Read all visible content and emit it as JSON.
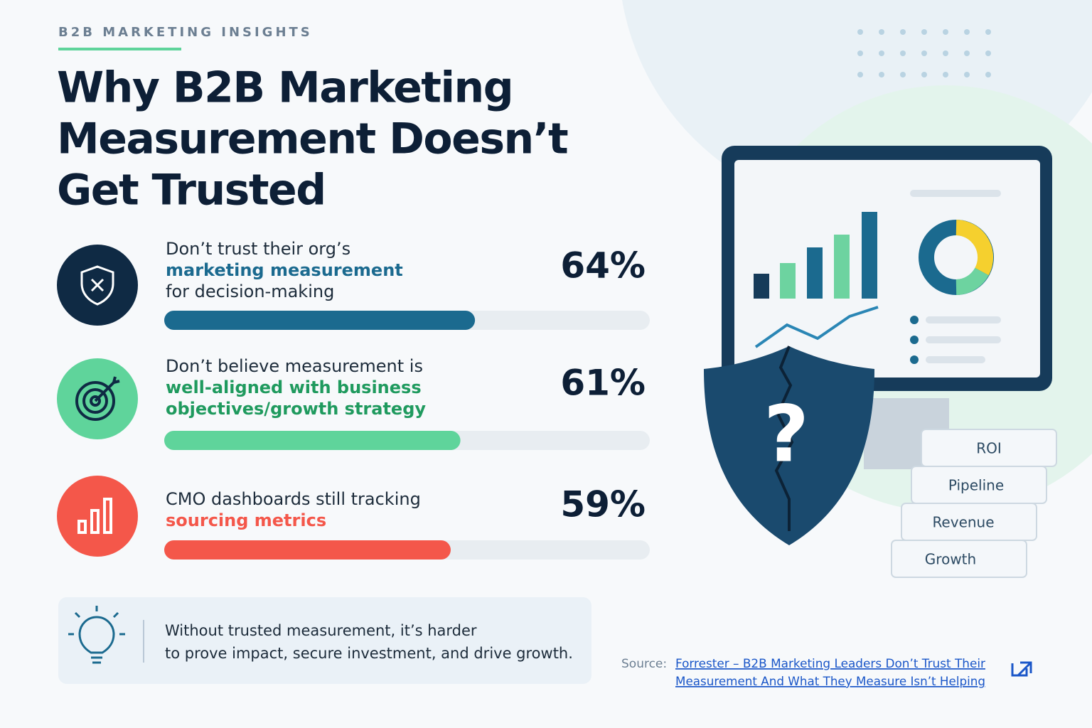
{
  "header": {
    "eyebrow": "B2B MARKETING INSIGHTS",
    "title": [
      "Why B2B Marketing",
      "Measurement Doesn’t",
      "Get Trusted"
    ]
  },
  "stats": {
    "xlim": [
      0,
      100
    ],
    "items": [
      {
        "lines": [
          {
            "text": "Don’t trust their org’s",
            "highlight": false
          },
          {
            "text": "marketing measurement",
            "highlight": true
          },
          {
            "text": "for decision-making",
            "highlight": false
          }
        ],
        "value": 64,
        "value_label": "64%",
        "color": "#1b6a8f",
        "bar_color": "#1b6a8f",
        "icon_color": "#0f2a44"
      },
      {
        "lines": [
          {
            "text": "Don’t believe measurement is",
            "highlight": false
          },
          {
            "text": "well-aligned with business",
            "highlight": true
          },
          {
            "text": "objectives/growth strategy",
            "highlight": true
          }
        ],
        "value": 61,
        "value_label": "61%",
        "color": "#1f9a5e",
        "bar_color": "#5fd49b",
        "icon_color": "#5fd49b"
      },
      {
        "lines": [
          {
            "text": "CMO dashboards still tracking",
            "highlight": false
          },
          {
            "text": "sourcing metrics",
            "highlight": true
          }
        ],
        "value": 59,
        "value_label": "59%",
        "color": "#f4574a",
        "bar_color": "#f4574a",
        "icon_color": "#f4574a"
      }
    ]
  },
  "callout": {
    "lines": [
      "Without trusted measurement, it’s harder",
      "to prove impact, secure investment, and drive growth."
    ]
  },
  "source": {
    "label": "Source:",
    "link": [
      "Forrester – B2B Marketing Leaders Don’t Trust Their",
      "Measurement And What They Measure Isn’t Helping"
    ]
  },
  "illustration": {
    "symbol": "?",
    "blocks": [
      "ROI",
      "Pipeline",
      "Revenue",
      "Growth"
    ]
  }
}
